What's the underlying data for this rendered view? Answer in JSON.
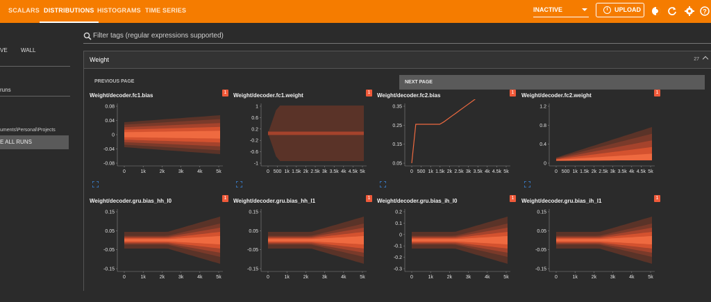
{
  "topbar": {
    "tabs": [
      {
        "label": "SCALARS",
        "active": false
      },
      {
        "label": "DISTRIBUTIONS",
        "active": true
      },
      {
        "label": "HISTOGRAMS",
        "active": false
      },
      {
        "label": "TIME SERIES",
        "active": false
      }
    ],
    "status_select": "INACTIVE",
    "upload_label": "UPLOAD",
    "icons": [
      "brightness-icon",
      "refresh-icon",
      "settings-icon",
      "help-icon"
    ],
    "accent": "#f57c00"
  },
  "sidebar": {
    "time_options": [
      "VE",
      "WALL"
    ],
    "runs_filter_value": "runs",
    "toggle_all_label": "E ALL RUNS",
    "run_path": "uments\\Personal\\Projects"
  },
  "main": {
    "filter_placeholder": "Filter tags (regular expressions supported)",
    "section_title": "Weight",
    "section_count": "27",
    "prev_page": "PREVIOUS PAGE",
    "next_page": "NEXT PAGE",
    "cards": [
      {
        "title": "Weight/decoder.fc1.bias",
        "badge": "1",
        "yticks": [
          "0.08",
          "0.04",
          "0",
          "-0.04",
          "-0.08"
        ],
        "xticks": [
          "0",
          "1k",
          "2k",
          "3k",
          "4k",
          "5k"
        ]
      },
      {
        "title": "Weight/decoder.fc1.weight",
        "badge": "1",
        "yticks": [
          "1",
          "0.6",
          "0.2",
          "-0.2",
          "-0.6",
          "-1"
        ],
        "xticks": [
          "0",
          "500",
          "1k",
          "1.5k",
          "2k",
          "2.5k",
          "3k",
          "3.5k",
          "4k",
          "4.5k",
          "5k"
        ]
      },
      {
        "title": "Weight/decoder.fc2.bias",
        "badge": "1",
        "yticks": [
          "0.35",
          "0.25",
          "0.15",
          "0.05"
        ],
        "xticks": [
          "0",
          "500",
          "1k",
          "1.5k",
          "2k",
          "2.5k",
          "3k",
          "3.5k",
          "4k",
          "4.5k",
          "5k"
        ]
      },
      {
        "title": "Weight/decoder.fc2.weight",
        "badge": "1",
        "yticks": [
          "1.2",
          "0.8",
          "0.4",
          "0"
        ],
        "xticks": [
          "0",
          "500",
          "1k",
          "1.5k",
          "2k",
          "2.5k",
          "3k",
          "3.5k",
          "4k",
          "4.5k",
          "5k"
        ]
      },
      {
        "title": "Weight/decoder.gru.bias_hh_l0",
        "badge": "1",
        "yticks": [
          "0.15",
          "0.05",
          "-0.05",
          "-0.15"
        ],
        "xticks": [
          "0",
          "1k",
          "2k",
          "3k",
          "4k",
          "5k"
        ]
      },
      {
        "title": "Weight/decoder.gru.bias_hh_l1",
        "badge": "1",
        "yticks": [
          "0.15",
          "0.05",
          "-0.05",
          "-0.15"
        ],
        "xticks": [
          "0",
          "1k",
          "2k",
          "3k",
          "4k",
          "5k"
        ]
      },
      {
        "title": "Weight/decoder.gru.bias_ih_l0",
        "badge": "1",
        "yticks": [
          "0.2",
          "0.1",
          "0",
          "-0.1",
          "-0.2",
          "-0.3"
        ],
        "xticks": [
          "0",
          "1k",
          "2k",
          "3k",
          "4k",
          "5k"
        ]
      },
      {
        "title": "Weight/decoder.gru.bias_ih_l1",
        "badge": "1",
        "yticks": [
          "0.15",
          "0.05",
          "-0.05",
          "-0.15"
        ],
        "xticks": [
          "0",
          "1k",
          "2k",
          "3k",
          "4k",
          "5k"
        ]
      }
    ]
  }
}
